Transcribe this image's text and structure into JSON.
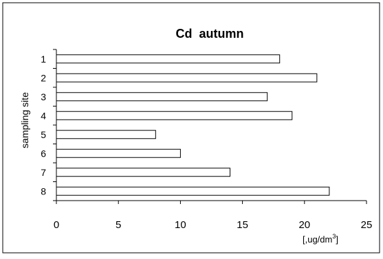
{
  "chart_data": {
    "type": "bar",
    "orientation": "horizontal",
    "title": "Cd  autumn",
    "ylabel": "sampling site",
    "xlabel": "",
    "unit_label": "[,ug/dm",
    "unit_superscript": "3",
    "unit_close": "]",
    "categories": [
      "1",
      "2",
      "3",
      "4",
      "5",
      "6",
      "7",
      "8"
    ],
    "values": [
      18,
      21,
      17,
      19,
      8,
      10,
      14,
      22
    ],
    "xlim": [
      0,
      25
    ],
    "x_ticks": [
      "0",
      "5",
      "10",
      "15",
      "20",
      "25"
    ],
    "grid": false,
    "legend": "none",
    "bar_fill": "#ffffff",
    "bar_stroke": "#000000"
  }
}
